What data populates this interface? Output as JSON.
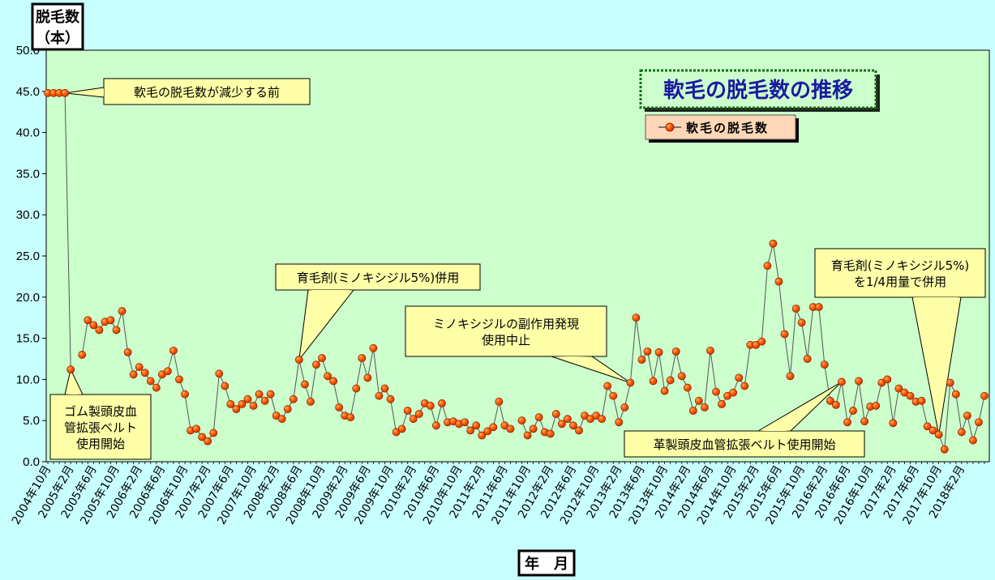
{
  "chart_data": {
    "type": "line",
    "title": "軟毛の脱毛数の推移",
    "ylabel_line1": "脱毛数",
    "ylabel_line2": "（本）",
    "xlabel": "年　月",
    "ylim": [
      0,
      50
    ],
    "yticks": [
      "0.0",
      "5.0",
      "10.0",
      "15.0",
      "20.0",
      "25.0",
      "30.0",
      "35.0",
      "40.0",
      "45.0",
      "50.0"
    ],
    "grid": false,
    "legend_position": "top-right",
    "series": [
      {
        "name": "軟毛の脱毛数",
        "color": "#ff5a00",
        "values": [
          44.8,
          44.8,
          44.8,
          44.8,
          11.2,
          null,
          13.0,
          17.2,
          16.6,
          16.0,
          17.0,
          17.2,
          16.0,
          18.3,
          13.3,
          10.6,
          11.5,
          10.8,
          9.8,
          9.0,
          10.6,
          11.0,
          13.5,
          10.0,
          8.2,
          3.8,
          4.0,
          3.0,
          2.5,
          3.5,
          10.7,
          9.2,
          7.0,
          6.4,
          7.0,
          7.6,
          6.8,
          8.2,
          7.4,
          8.2,
          5.6,
          5.2,
          6.4,
          7.6,
          12.4,
          9.4,
          7.3,
          11.8,
          12.6,
          10.4,
          9.8,
          6.6,
          5.6,
          5.4,
          8.9,
          12.6,
          10.2,
          13.8,
          8.0,
          8.9,
          7.6,
          3.6,
          4.0,
          6.2,
          5.2,
          5.8,
          7.1,
          6.8,
          4.4,
          7.1,
          4.8,
          4.9,
          4.6,
          4.8,
          3.8,
          4.4,
          3.2,
          3.7,
          4.2,
          7.3,
          4.4,
          4.0,
          null,
          5.0,
          3.2,
          4.0,
          5.4,
          3.6,
          3.4,
          5.8,
          4.6,
          5.2,
          4.4,
          3.8,
          5.6,
          5.2,
          5.6,
          5.2,
          9.2,
          8.0,
          4.8,
          6.6,
          9.6,
          17.5,
          12.4,
          13.4,
          9.8,
          13.3,
          8.6,
          9.9,
          13.4,
          10.4,
          9.0,
          6.2,
          7.4,
          6.6,
          13.5,
          8.5,
          7.0,
          8.0,
          8.4,
          10.2,
          9.2,
          14.2,
          14.2,
          14.6,
          23.8,
          26.5,
          21.9,
          15.5,
          10.4,
          18.6,
          16.9,
          12.5,
          18.8,
          18.8,
          11.8,
          7.4,
          6.9,
          9.7,
          4.8,
          6.2,
          9.8,
          4.9,
          6.7,
          6.8,
          9.6,
          10.0,
          4.7,
          8.9,
          8.4,
          8.0,
          7.3,
          7.4,
          4.3,
          3.8,
          3.3,
          1.5,
          9.6,
          8.2,
          3.6,
          5.6,
          2.6,
          4.8,
          8.0
        ]
      }
    ],
    "x_labels": [
      "2004年10月",
      "2005年2月",
      "2005年6月",
      "2005年10月",
      "2006年2月",
      "2006年6月",
      "2006年10月",
      "2007年2月",
      "2007年6月",
      "2007年10月",
      "2008年2月",
      "2008年6月",
      "2008年10月",
      "2009年2月",
      "2009年6月",
      "2009年10月",
      "2010年2月",
      "2010年6月",
      "2010年10月",
      "2011年2月",
      "2011年6月",
      "2011年10月",
      "2012年2月",
      "2012年6月",
      "2012年10月",
      "2013年2月",
      "2013年6月",
      "2013年10月",
      "2014年2月",
      "2014年6月",
      "2014年10月",
      "2015年2月",
      "2015年6月",
      "2015年10月",
      "2016年2月",
      "2016年6月",
      "2016年10月",
      "2017年2月",
      "2017年6月",
      "2017年10月",
      "2018年2月"
    ],
    "annotations": [
      {
        "lines": [
          "軟毛の脱毛数が減少する前"
        ],
        "point_index": 3
      },
      {
        "lines": [
          "ゴム製頭皮血",
          "管拡張ベルト",
          "使用開始"
        ],
        "point_index": 4
      },
      {
        "lines": [
          "育毛剤(ミノキシジル5%)併用"
        ],
        "point_index": 44
      },
      {
        "lines": [
          "ミノキシジルの副作用発現",
          "使用中止"
        ],
        "point_index": 102
      },
      {
        "lines": [
          "革製頭皮血管拡張ベルト使用開始"
        ],
        "point_index": 139
      },
      {
        "lines": [
          "育毛剤(ミノキシジル5%)",
          "を1/4用量で併用"
        ],
        "point_index": 156
      }
    ]
  }
}
